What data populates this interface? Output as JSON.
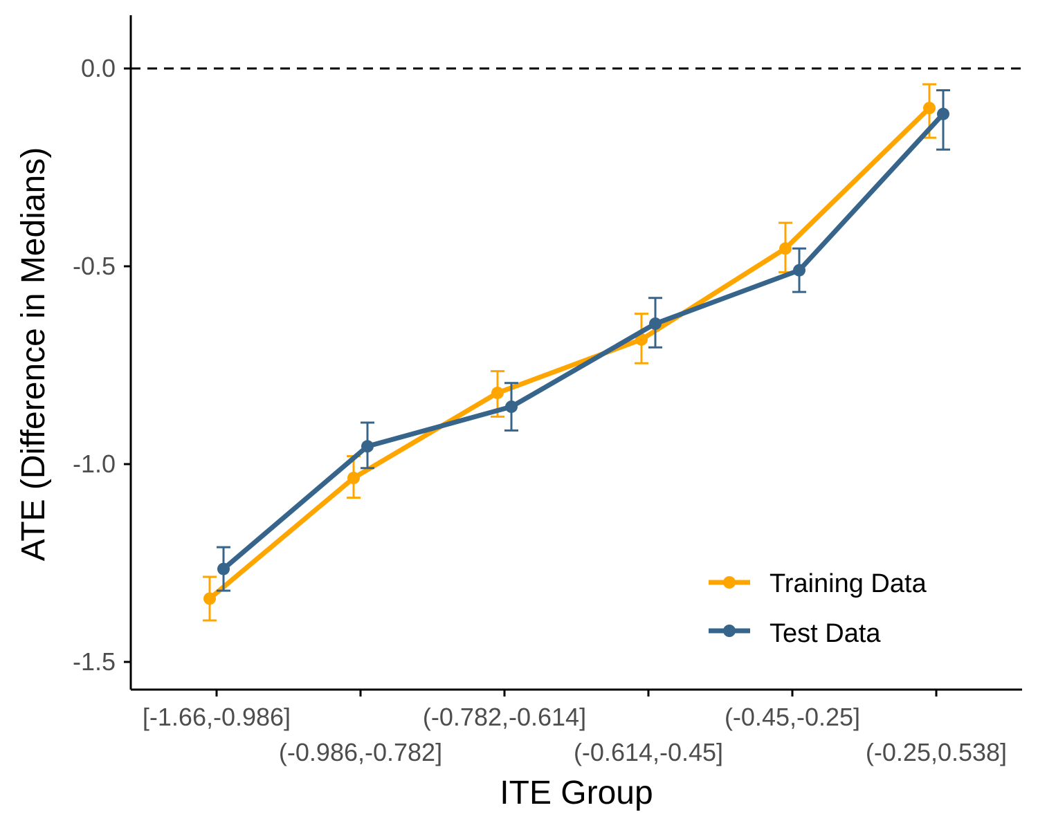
{
  "chart_data": {
    "type": "line",
    "title": "",
    "xlabel": "ITE Group",
    "ylabel": "ATE (Difference in Medians)",
    "categories": [
      "[-1.66,-0.986]",
      "(-0.986,-0.782]",
      "(-0.782,-0.614]",
      "(-0.614,-0.45]",
      "(-0.45,-0.25]",
      "(-0.25,0.538]"
    ],
    "ylim": [
      -1.57,
      0.13
    ],
    "yticks": [
      0.0,
      -0.5,
      -1.0,
      -1.5
    ],
    "ytick_labels": [
      "0.0",
      "-0.5",
      "-1.0",
      "-1.5"
    ],
    "reference_line": {
      "y": 0.0,
      "style": "dashed",
      "color": "#000000"
    },
    "grid": false,
    "legend_position": "bottom-right",
    "series": [
      {
        "name": "Training Data",
        "color": "#FFA500",
        "values": [
          -1.34,
          -1.035,
          -0.82,
          -0.685,
          -0.455,
          -0.1
        ],
        "lower": [
          -1.395,
          -1.085,
          -0.88,
          -0.745,
          -0.515,
          -0.175
        ],
        "upper": [
          -1.285,
          -0.98,
          -0.765,
          -0.62,
          -0.39,
          -0.04
        ]
      },
      {
        "name": "Test Data",
        "color": "#36648B",
        "values": [
          -1.265,
          -0.955,
          -0.855,
          -0.645,
          -0.51,
          -0.115
        ],
        "lower": [
          -1.32,
          -1.01,
          -0.915,
          -0.705,
          -0.565,
          -0.205
        ],
        "upper": [
          -1.21,
          -0.895,
          -0.795,
          -0.58,
          -0.455,
          -0.055
        ]
      }
    ]
  }
}
